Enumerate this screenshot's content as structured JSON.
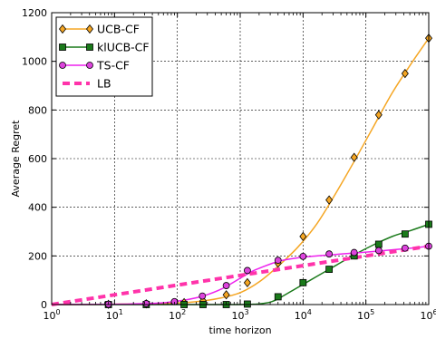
{
  "chart_data": {
    "type": "line",
    "xlabel": "time horizon",
    "ylabel": "Average Regret",
    "xscale": "log",
    "xlim": [
      1,
      1000000
    ],
    "ylim": [
      0,
      1200
    ],
    "x_ticks": [
      1,
      10,
      100,
      1000,
      10000,
      100000,
      1000000
    ],
    "x_tick_labels": [
      {
        "base": "10",
        "exp": "0"
      },
      {
        "base": "10",
        "exp": "1"
      },
      {
        "base": "10",
        "exp": "2"
      },
      {
        "base": "10",
        "exp": "3"
      },
      {
        "base": "10",
        "exp": "4"
      },
      {
        "base": "10",
        "exp": "5"
      },
      {
        "base": "10",
        "exp": "6"
      }
    ],
    "y_ticks": [
      0,
      200,
      400,
      600,
      800,
      1000,
      1200
    ],
    "y_tick_labels": [
      "0",
      "200",
      "400",
      "600",
      "800",
      "1000",
      "1200"
    ],
    "grid": true,
    "legend_position": "top-left",
    "series": [
      {
        "name": "UCB-CF",
        "color": "#f5a623",
        "marker": "diamond",
        "marker_fill": "#f5a623",
        "line_style": "solid",
        "x": [
          1,
          2,
          4,
          8,
          16,
          32,
          64,
          128,
          256,
          512,
          1024,
          2048,
          4096,
          8192,
          16384,
          32768,
          65536,
          131072,
          262144,
          524288,
          1000000
        ],
        "y": [
          0,
          0,
          0.5,
          1,
          2,
          3,
          5,
          8,
          15,
          28,
          50,
          95,
          160,
          235,
          330,
          455,
          590,
          730,
          870,
          990,
          1095
        ],
        "marker_x": [
          8,
          32,
          128,
          256,
          600,
          1300,
          4000,
          10000,
          26000,
          65000,
          160000,
          420000,
          1000000
        ],
        "marker_y": [
          1,
          3,
          8,
          15,
          40,
          90,
          170,
          280,
          430,
          605,
          780,
          950,
          1095
        ]
      },
      {
        "name": "klUCB-CF",
        "color": "#1a7a1a",
        "marker": "square",
        "marker_fill": "#1a7a1a",
        "line_style": "solid",
        "x": [
          1,
          8,
          32,
          128,
          256,
          512,
          1024,
          1500,
          2048,
          3000,
          4096,
          8192,
          16384,
          32768,
          65536,
          131072,
          262144,
          524288,
          1000000
        ],
        "y": [
          0,
          0,
          0,
          0,
          0,
          0,
          0,
          1,
          3,
          10,
          25,
          70,
          115,
          160,
          205,
          245,
          280,
          305,
          330
        ],
        "marker_x": [
          8,
          32,
          128,
          256,
          600,
          1300,
          4000,
          10000,
          26000,
          65000,
          160000,
          420000,
          1000000
        ],
        "marker_y": [
          0,
          0,
          0,
          0,
          0,
          2,
          32,
          90,
          145,
          200,
          248,
          290,
          330
        ]
      },
      {
        "name": "TS-CF",
        "color": "#ee22ee",
        "marker": "circle",
        "marker_fill": "#dd44dd",
        "line_style": "solid",
        "x": [
          1,
          4,
          8,
          16,
          32,
          64,
          128,
          256,
          512,
          1024,
          1500,
          2048,
          4096,
          8192,
          16384,
          32768,
          65536,
          131072,
          262144,
          524288,
          1000000
        ],
        "y": [
          0,
          0.5,
          1,
          2,
          4,
          8,
          18,
          35,
          65,
          110,
          135,
          150,
          178,
          192,
          200,
          206,
          212,
          218,
          225,
          232,
          240
        ],
        "marker_x": [
          8,
          32,
          90,
          250,
          600,
          1300,
          4000,
          10000,
          26000,
          65000,
          160000,
          420000,
          1000000
        ],
        "marker_y": [
          1,
          4,
          12,
          35,
          78,
          140,
          182,
          198,
          208,
          214,
          222,
          232,
          240
        ]
      },
      {
        "name": "LB",
        "color": "#ff33aa",
        "marker": "none",
        "line_style": "dashed",
        "x": [
          1,
          1000000
        ],
        "y": [
          0,
          240
        ]
      }
    ]
  }
}
